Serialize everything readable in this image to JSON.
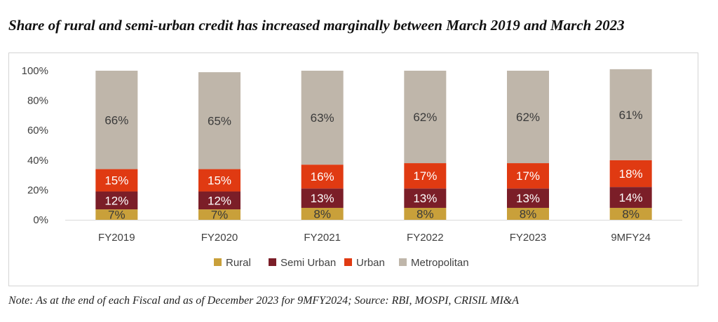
{
  "title": "Share of rural and semi-urban credit has increased marginally between March 2019 and March 2023",
  "note": "Note: As at the end of each Fiscal and as of December 2023 for 9MFY2024; Source: RBI, MOSPI, CRISIL MI&A",
  "chart_data": {
    "type": "bar",
    "stacked": true,
    "categories": [
      "FY2019",
      "FY2020",
      "FY2021",
      "FY2022",
      "FY2023",
      "9MFY24"
    ],
    "series": [
      {
        "name": "Rural",
        "color": "#c9a03a",
        "values": [
          7,
          7,
          8,
          8,
          8,
          8
        ],
        "labels": [
          "7%",
          "7%",
          "8%",
          "8%",
          "8%",
          "8%"
        ]
      },
      {
        "name": "Semi Urban",
        "color": "#7b1e28",
        "values": [
          12,
          12,
          13,
          13,
          13,
          14
        ],
        "labels": [
          "12%",
          "12%",
          "13%",
          "13%",
          "13%",
          "14%"
        ]
      },
      {
        "name": "Urban",
        "color": "#e03a12",
        "values": [
          15,
          15,
          16,
          17,
          17,
          18
        ],
        "labels": [
          "15%",
          "15%",
          "16%",
          "17%",
          "17%",
          "18%"
        ]
      },
      {
        "name": "Metropolitan",
        "color": "#bfb6aa",
        "values": [
          66,
          65,
          63,
          62,
          62,
          61
        ],
        "labels": [
          "66%",
          "65%",
          "63%",
          "62%",
          "62%",
          "61%"
        ]
      }
    ],
    "ylim": [
      0,
      100
    ],
    "yticks": [
      0,
      20,
      40,
      60,
      80,
      100
    ],
    "ytick_labels": [
      "0%",
      "20%",
      "40%",
      "60%",
      "80%",
      "100%"
    ],
    "xlabel": "",
    "ylabel": "",
    "grid": false,
    "legend_position": "bottom"
  }
}
